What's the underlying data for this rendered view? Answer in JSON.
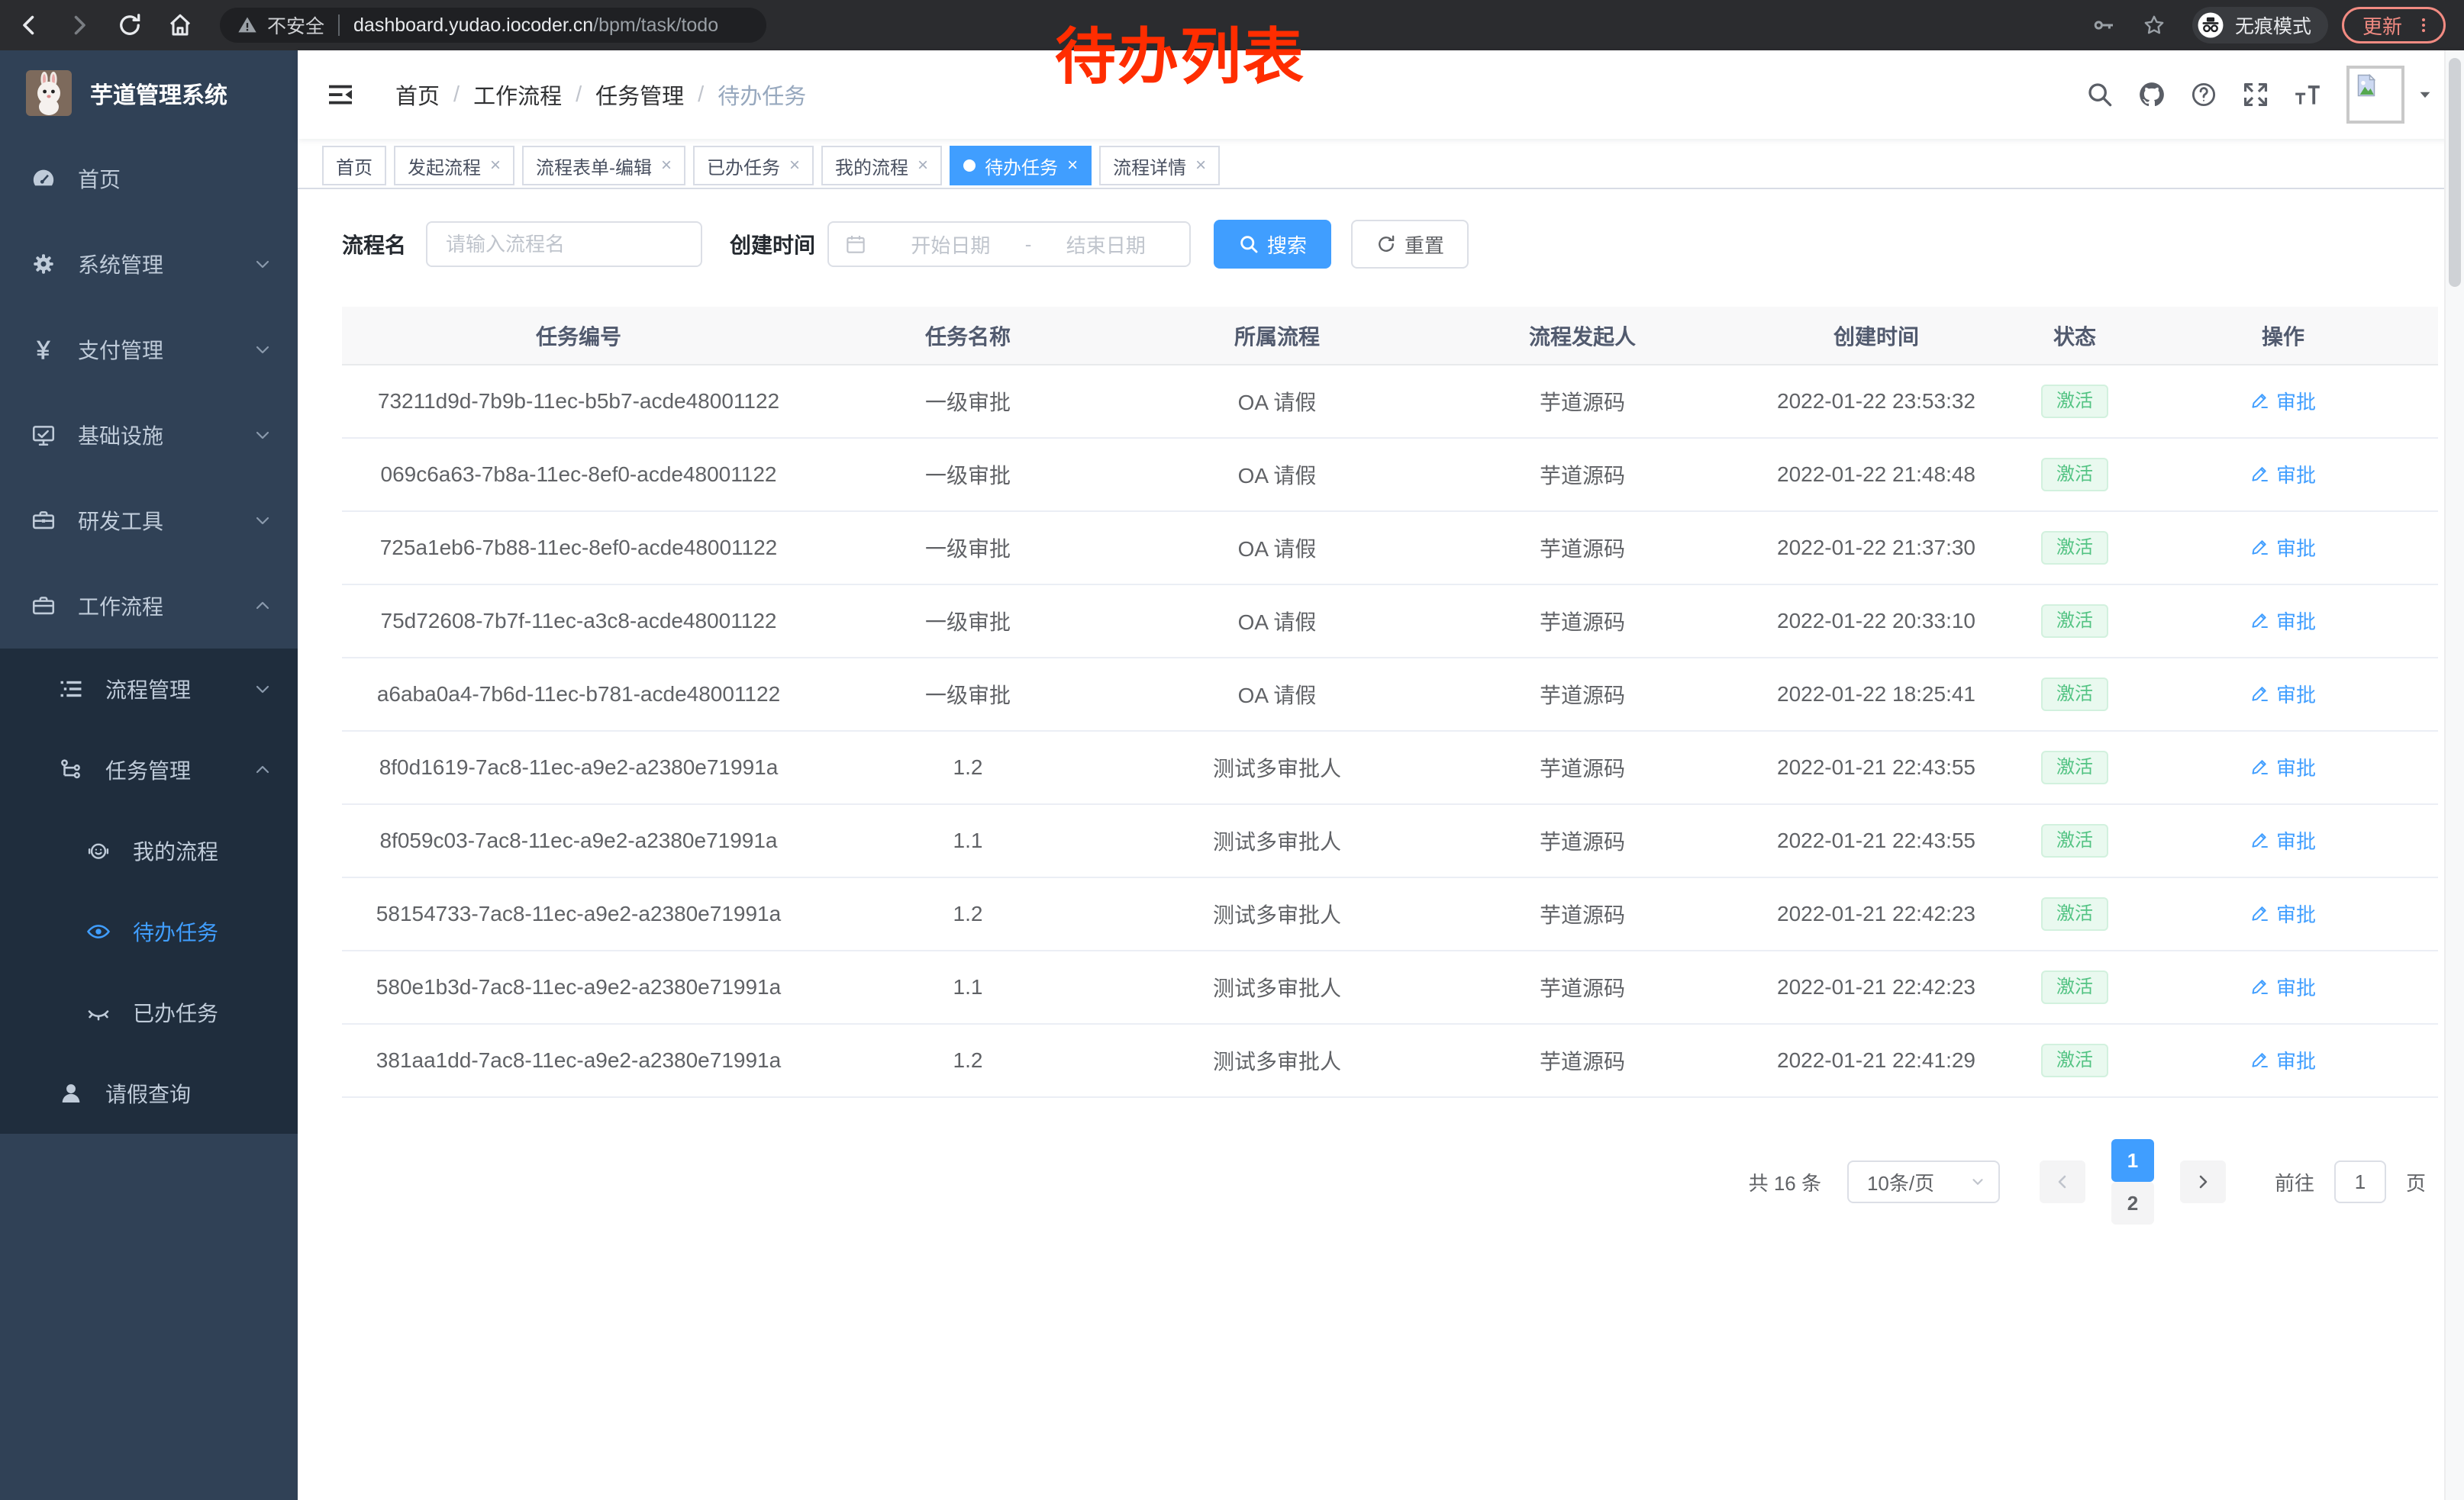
{
  "colors": {
    "accent": "#409eff",
    "success": "#53c383",
    "overlay_red": "#ff2d00",
    "update_salmon": "#f28b82",
    "sidebar_bg": "#304156",
    "submenu_bg": "#1f2d3d"
  },
  "browser": {
    "security_label": "不安全",
    "url_host": "dashboard.yudao.iocoder.cn",
    "url_path": "/bpm/task/todo",
    "incognito_label": "无痕模式",
    "update_label": "更新"
  },
  "overlay": {
    "title": "待办列表"
  },
  "sidebar": {
    "app_title": "芋道管理系统",
    "items": [
      {
        "key": "home",
        "label": "首页",
        "icon": "gauge",
        "level": 1,
        "sub": false
      },
      {
        "key": "system-mgmt",
        "label": "系统管理",
        "icon": "gear",
        "level": 1,
        "sub": false,
        "chevron": "down"
      },
      {
        "key": "payment-mgmt",
        "label": "支付管理",
        "icon": "yen",
        "level": 1,
        "sub": false,
        "chevron": "down"
      },
      {
        "key": "infrastructure",
        "label": "基础设施",
        "icon": "monitor",
        "level": 1,
        "sub": false,
        "chevron": "down"
      },
      {
        "key": "dev-tools",
        "label": "研发工具",
        "icon": "toolbox",
        "level": 1,
        "sub": false,
        "chevron": "down"
      },
      {
        "key": "workflow",
        "label": "工作流程",
        "icon": "briefcase",
        "level": 1,
        "sub": false,
        "chevron": "up"
      },
      {
        "key": "process-mgmt",
        "label": "流程管理",
        "icon": "list-tree",
        "level": 2,
        "sub": true,
        "chevron": "down"
      },
      {
        "key": "task-mgmt",
        "label": "任务管理",
        "icon": "org-tree",
        "level": 2,
        "sub": true,
        "chevron": "up"
      },
      {
        "key": "my-process",
        "label": "我的流程",
        "icon": "robot-face",
        "level": 3,
        "sub": true
      },
      {
        "key": "todo-task",
        "label": "待办任务",
        "icon": "eye",
        "level": 3,
        "sub": true,
        "active": true
      },
      {
        "key": "done-task",
        "label": "已办任务",
        "icon": "eye-closed",
        "level": 3,
        "sub": true
      },
      {
        "key": "leave-query",
        "label": "请假查询",
        "icon": "user",
        "level": 2,
        "sub": true
      }
    ]
  },
  "header": {
    "breadcrumb": [
      "首页",
      "工作流程",
      "任务管理",
      "待办任务"
    ]
  },
  "tabs": [
    {
      "key": "home",
      "label": "首页",
      "closable": false,
      "active": false
    },
    {
      "key": "initiate-process",
      "label": "发起流程",
      "closable": true,
      "active": false
    },
    {
      "key": "form-edit",
      "label": "流程表单-编辑",
      "closable": true,
      "active": false
    },
    {
      "key": "done-task",
      "label": "已办任务",
      "closable": true,
      "active": false
    },
    {
      "key": "my-process",
      "label": "我的流程",
      "closable": true,
      "active": false
    },
    {
      "key": "todo-task",
      "label": "待办任务",
      "closable": true,
      "active": true
    },
    {
      "key": "process-detail",
      "label": "流程详情",
      "closable": true,
      "active": false
    }
  ],
  "filters": {
    "name_label": "流程名",
    "name_placeholder": "请输入流程名",
    "time_label": "创建时间",
    "start_placeholder": "开始日期",
    "range_separator": "-",
    "end_placeholder": "结束日期",
    "search_label": "搜索",
    "reset_label": "重置"
  },
  "table": {
    "columns": [
      "任务编号",
      "任务名称",
      "所属流程",
      "流程发起人",
      "创建时间",
      "状态",
      "操作"
    ],
    "rows": [
      {
        "id": "73211d9d-7b9b-11ec-b5b7-acde48001122",
        "name": "一级审批",
        "process": "OA 请假",
        "starter": "芋道源码",
        "created": "2022-01-22 23:53:32",
        "status": "激活",
        "action": "审批"
      },
      {
        "id": "069c6a63-7b8a-11ec-8ef0-acde48001122",
        "name": "一级审批",
        "process": "OA 请假",
        "starter": "芋道源码",
        "created": "2022-01-22 21:48:48",
        "status": "激活",
        "action": "审批"
      },
      {
        "id": "725a1eb6-7b88-11ec-8ef0-acde48001122",
        "name": "一级审批",
        "process": "OA 请假",
        "starter": "芋道源码",
        "created": "2022-01-22 21:37:30",
        "status": "激活",
        "action": "审批"
      },
      {
        "id": "75d72608-7b7f-11ec-a3c8-acde48001122",
        "name": "一级审批",
        "process": "OA 请假",
        "starter": "芋道源码",
        "created": "2022-01-22 20:33:10",
        "status": "激活",
        "action": "审批"
      },
      {
        "id": "a6aba0a4-7b6d-11ec-b781-acde48001122",
        "name": "一级审批",
        "process": "OA 请假",
        "starter": "芋道源码",
        "created": "2022-01-22 18:25:41",
        "status": "激活",
        "action": "审批"
      },
      {
        "id": "8f0d1619-7ac8-11ec-a9e2-a2380e71991a",
        "name": "1.2",
        "process": "测试多审批人",
        "starter": "芋道源码",
        "created": "2022-01-21 22:43:55",
        "status": "激活",
        "action": "审批"
      },
      {
        "id": "8f059c03-7ac8-11ec-a9e2-a2380e71991a",
        "name": "1.1",
        "process": "测试多审批人",
        "starter": "芋道源码",
        "created": "2022-01-21 22:43:55",
        "status": "激活",
        "action": "审批"
      },
      {
        "id": "58154733-7ac8-11ec-a9e2-a2380e71991a",
        "name": "1.2",
        "process": "测试多审批人",
        "starter": "芋道源码",
        "created": "2022-01-21 22:42:23",
        "status": "激活",
        "action": "审批"
      },
      {
        "id": "580e1b3d-7ac8-11ec-a9e2-a2380e71991a",
        "name": "1.1",
        "process": "测试多审批人",
        "starter": "芋道源码",
        "created": "2022-01-21 22:42:23",
        "status": "激活",
        "action": "审批"
      },
      {
        "id": "381aa1dd-7ac8-11ec-a9e2-a2380e71991a",
        "name": "1.2",
        "process": "测试多审批人",
        "starter": "芋道源码",
        "created": "2022-01-21 22:41:29",
        "status": "激活",
        "action": "审批"
      }
    ]
  },
  "pagination": {
    "total": "共 16 条",
    "page_size": "10条/页",
    "pages": [
      "1",
      "2"
    ],
    "active_page": "1",
    "goto_label": "前往",
    "goto_value": "1",
    "unit": "页"
  }
}
